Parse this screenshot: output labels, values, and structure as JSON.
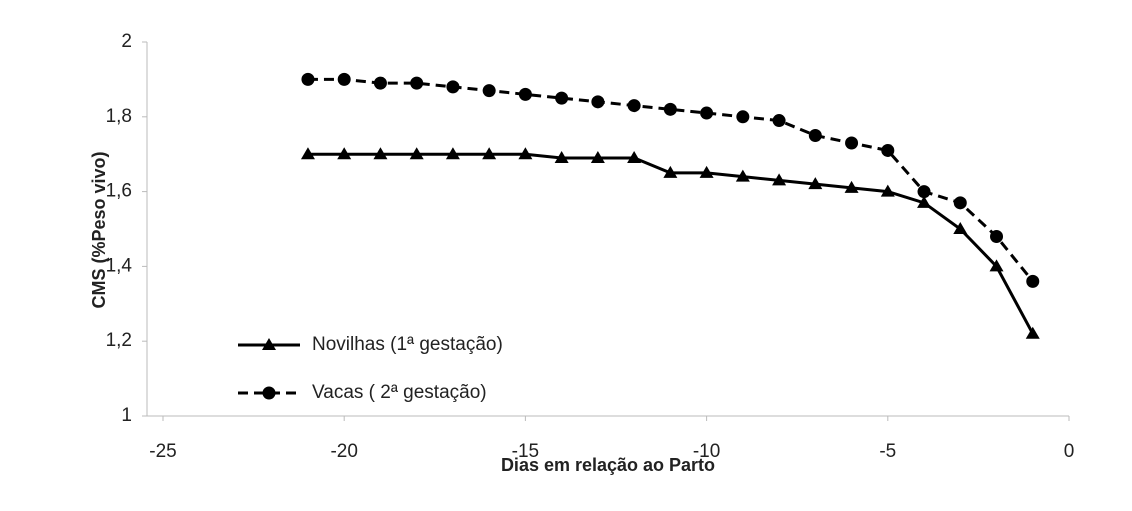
{
  "chart_data": {
    "type": "line",
    "x_label": "Dias em relação ao Parto",
    "y_label": "CMS (%Peso vivo)",
    "x": [
      -21,
      -20,
      -19,
      -18,
      -17,
      -16,
      -15,
      -14,
      -13,
      -12,
      -11,
      -10,
      -9,
      -8,
      -7,
      -6,
      -5,
      -4,
      -3,
      -2,
      -1
    ],
    "series": [
      {
        "name": "Novilhas (1ª gestação)",
        "color": "#000000",
        "dash": false,
        "marker": "triangle",
        "values": [
          1.7,
          1.7,
          1.7,
          1.7,
          1.7,
          1.7,
          1.7,
          1.69,
          1.69,
          1.69,
          1.65,
          1.65,
          1.64,
          1.63,
          1.62,
          1.61,
          1.6,
          1.57,
          1.5,
          1.4,
          1.22
        ]
      },
      {
        "name": "Vacas ( 2ª gestação)",
        "color": "#000000",
        "dash": true,
        "marker": "circle",
        "values": [
          1.9,
          1.9,
          1.89,
          1.89,
          1.88,
          1.87,
          1.86,
          1.85,
          1.84,
          1.83,
          1.82,
          1.81,
          1.8,
          1.79,
          1.75,
          1.73,
          1.71,
          1.6,
          1.57,
          1.48,
          1.36
        ]
      }
    ],
    "xlim": [
      -25,
      0
    ],
    "xticks": [
      -25,
      -20,
      -15,
      -10,
      -5,
      0
    ],
    "ylim": [
      1,
      2
    ],
    "yticks": [
      1,
      {
        "value": 1.2,
        "label": "1,2"
      },
      {
        "value": 1.4,
        "label": "1,4"
      },
      {
        "value": 1.6,
        "label": "1,6"
      },
      {
        "value": 1.8,
        "label": "1,8"
      },
      2
    ],
    "legend": "lower left"
  }
}
